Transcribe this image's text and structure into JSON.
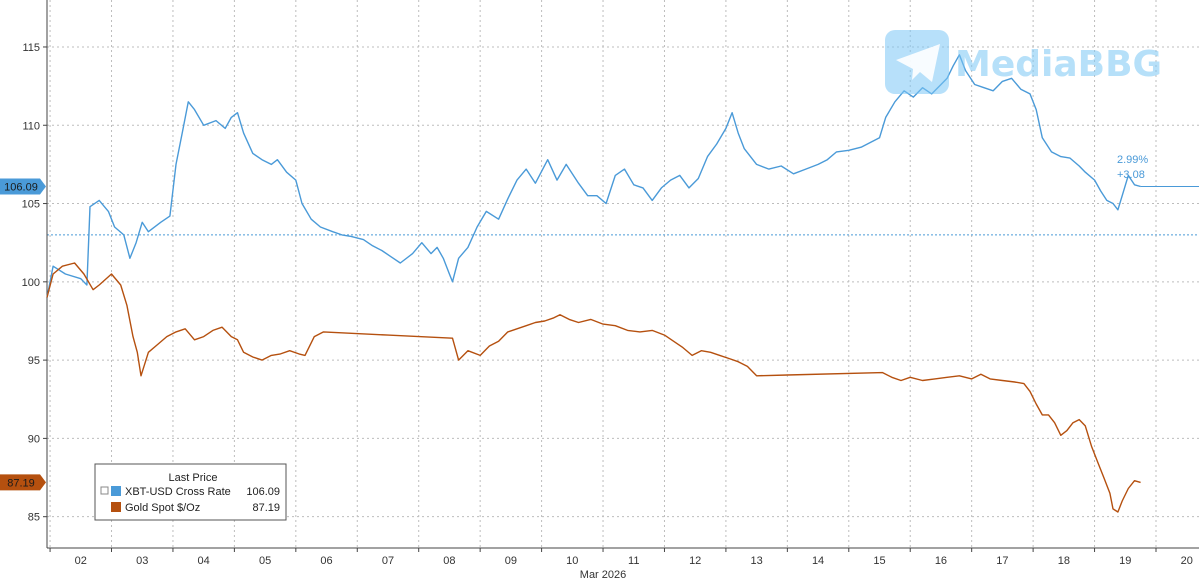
{
  "chart_data": {
    "type": "line",
    "xlabel": "Mar 2026",
    "x_ticks": [
      "02",
      "03",
      "04",
      "05",
      "06",
      "07",
      "08",
      "09",
      "10",
      "11",
      "12",
      "13",
      "14",
      "15",
      "16",
      "17",
      "18",
      "19",
      "20"
    ],
    "y_ticks": [
      "115",
      "110",
      "105",
      "100",
      "95",
      "90",
      "85"
    ],
    "ylim": [
      83,
      118
    ],
    "xlim": [
      1.95,
      20.7
    ],
    "grid": true,
    "reference_line": 103.0,
    "annotations": [
      "2.99%",
      "+3.08"
    ],
    "last_value_badges": [
      "106.09",
      "87.19"
    ],
    "legend": {
      "title": "Last Price",
      "placement": "bottom-left",
      "entries": [
        {
          "label": "XBT-USD Cross Rate",
          "value": "106.09",
          "color": "#4a9ad8"
        },
        {
          "label": "Gold Spot $/Oz",
          "value": "87.19",
          "color": "#b5500f"
        }
      ]
    },
    "series": [
      {
        "name": "XBT-USD Cross Rate",
        "color": "#4a9ad8",
        "points": [
          [
            1.95,
            99.0
          ],
          [
            2.05,
            101.0
          ],
          [
            2.25,
            100.5
          ],
          [
            2.5,
            100.2
          ],
          [
            2.6,
            99.8
          ],
          [
            2.65,
            104.8
          ],
          [
            2.8,
            105.2
          ],
          [
            2.95,
            104.5
          ],
          [
            3.05,
            103.5
          ],
          [
            3.2,
            103.0
          ],
          [
            3.3,
            101.5
          ],
          [
            3.4,
            102.5
          ],
          [
            3.5,
            103.8
          ],
          [
            3.6,
            103.2
          ],
          [
            3.8,
            103.8
          ],
          [
            3.95,
            104.2
          ],
          [
            4.05,
            107.5
          ],
          [
            4.15,
            109.5
          ],
          [
            4.25,
            111.5
          ],
          [
            4.35,
            111.0
          ],
          [
            4.5,
            110.0
          ],
          [
            4.7,
            110.3
          ],
          [
            4.85,
            109.8
          ],
          [
            4.95,
            110.5
          ],
          [
            5.05,
            110.8
          ],
          [
            5.15,
            109.5
          ],
          [
            5.3,
            108.2
          ],
          [
            5.45,
            107.8
          ],
          [
            5.6,
            107.5
          ],
          [
            5.7,
            107.8
          ],
          [
            5.85,
            107.0
          ],
          [
            6.0,
            106.5
          ],
          [
            6.1,
            105.0
          ],
          [
            6.25,
            104.0
          ],
          [
            6.4,
            103.5
          ],
          [
            6.6,
            103.2
          ],
          [
            6.75,
            103.0
          ],
          [
            6.9,
            102.9
          ],
          [
            7.1,
            102.7
          ],
          [
            7.25,
            102.3
          ],
          [
            7.4,
            102.0
          ],
          [
            7.55,
            101.6
          ],
          [
            7.7,
            101.2
          ],
          [
            7.9,
            101.8
          ],
          [
            8.05,
            102.5
          ],
          [
            8.2,
            101.8
          ],
          [
            8.3,
            102.2
          ],
          [
            8.4,
            101.5
          ],
          [
            8.5,
            100.5
          ],
          [
            8.55,
            100.0
          ],
          [
            8.65,
            101.5
          ],
          [
            8.8,
            102.2
          ],
          [
            8.95,
            103.5
          ],
          [
            9.1,
            104.5
          ],
          [
            9.3,
            104.0
          ],
          [
            9.45,
            105.3
          ],
          [
            9.6,
            106.5
          ],
          [
            9.75,
            107.2
          ],
          [
            9.9,
            106.3
          ],
          [
            10.1,
            107.8
          ],
          [
            10.25,
            106.5
          ],
          [
            10.4,
            107.5
          ],
          [
            10.6,
            106.3
          ],
          [
            10.75,
            105.5
          ],
          [
            10.9,
            105.5
          ],
          [
            11.05,
            105.0
          ],
          [
            11.2,
            106.8
          ],
          [
            11.35,
            107.2
          ],
          [
            11.5,
            106.2
          ],
          [
            11.65,
            106.0
          ],
          [
            11.8,
            105.2
          ],
          [
            11.95,
            106.0
          ],
          [
            12.1,
            106.5
          ],
          [
            12.25,
            106.8
          ],
          [
            12.4,
            106.0
          ],
          [
            12.55,
            106.6
          ],
          [
            12.7,
            108.0
          ],
          [
            12.85,
            108.8
          ],
          [
            13.0,
            109.8
          ],
          [
            13.1,
            110.8
          ],
          [
            13.2,
            109.5
          ],
          [
            13.3,
            108.5
          ],
          [
            13.5,
            107.5
          ],
          [
            13.7,
            107.2
          ],
          [
            13.9,
            107.4
          ],
          [
            14.1,
            106.9
          ],
          [
            14.3,
            107.2
          ],
          [
            14.5,
            107.5
          ],
          [
            14.65,
            107.8
          ],
          [
            14.8,
            108.3
          ],
          [
            15.0,
            108.4
          ],
          [
            15.2,
            108.6
          ],
          [
            15.35,
            108.9
          ],
          [
            15.5,
            109.2
          ],
          [
            15.6,
            110.5
          ],
          [
            15.75,
            111.5
          ],
          [
            15.9,
            112.2
          ],
          [
            16.05,
            111.8
          ],
          [
            16.2,
            112.4
          ],
          [
            16.35,
            112.0
          ],
          [
            16.5,
            112.6
          ],
          [
            16.6,
            113.0
          ],
          [
            16.7,
            113.8
          ],
          [
            16.8,
            114.5
          ],
          [
            16.9,
            113.5
          ],
          [
            17.05,
            112.6
          ],
          [
            17.2,
            112.4
          ],
          [
            17.35,
            112.2
          ],
          [
            17.5,
            112.8
          ],
          [
            17.65,
            113.0
          ],
          [
            17.8,
            112.3
          ],
          [
            17.95,
            112.0
          ],
          [
            18.05,
            111.0
          ],
          [
            18.15,
            109.2
          ],
          [
            18.3,
            108.3
          ],
          [
            18.45,
            108.0
          ],
          [
            18.6,
            107.9
          ],
          [
            18.75,
            107.4
          ],
          [
            18.85,
            107.0
          ],
          [
            19.0,
            106.5
          ],
          [
            19.1,
            105.8
          ],
          [
            19.2,
            105.2
          ],
          [
            19.3,
            105.0
          ],
          [
            19.38,
            104.6
          ],
          [
            19.45,
            105.5
          ],
          [
            19.55,
            106.8
          ],
          [
            19.65,
            106.2
          ],
          [
            19.75,
            106.09
          ]
        ]
      },
      {
        "name": "Gold Spot $/Oz",
        "color": "#b5500f",
        "points": [
          [
            1.95,
            99.0
          ],
          [
            2.05,
            100.5
          ],
          [
            2.2,
            101.0
          ],
          [
            2.4,
            101.2
          ],
          [
            2.55,
            100.5
          ],
          [
            2.7,
            99.5
          ],
          [
            2.8,
            99.8
          ],
          [
            3.0,
            100.5
          ],
          [
            3.15,
            99.8
          ],
          [
            3.25,
            98.5
          ],
          [
            3.35,
            96.5
          ],
          [
            3.42,
            95.5
          ],
          [
            3.48,
            94.0
          ],
          [
            3.6,
            95.5
          ],
          [
            3.75,
            96.0
          ],
          [
            3.9,
            96.5
          ],
          [
            4.05,
            96.8
          ],
          [
            4.2,
            97.0
          ],
          [
            4.35,
            96.3
          ],
          [
            4.5,
            96.5
          ],
          [
            4.65,
            96.9
          ],
          [
            4.8,
            97.1
          ],
          [
            4.95,
            96.5
          ],
          [
            5.05,
            96.3
          ],
          [
            5.15,
            95.5
          ],
          [
            5.3,
            95.2
          ],
          [
            5.45,
            95.0
          ],
          [
            5.6,
            95.3
          ],
          [
            5.75,
            95.4
          ],
          [
            5.9,
            95.6
          ],
          [
            6.05,
            95.4
          ],
          [
            6.15,
            95.3
          ],
          [
            6.3,
            96.5
          ],
          [
            6.45,
            96.8
          ],
          [
            7.5,
            96.6
          ],
          [
            8.55,
            96.4
          ],
          [
            8.65,
            95.0
          ],
          [
            8.8,
            95.6
          ],
          [
            9.0,
            95.3
          ],
          [
            9.15,
            95.9
          ],
          [
            9.3,
            96.2
          ],
          [
            9.45,
            96.8
          ],
          [
            9.6,
            97.0
          ],
          [
            9.75,
            97.2
          ],
          [
            9.9,
            97.4
          ],
          [
            10.05,
            97.5
          ],
          [
            10.2,
            97.7
          ],
          [
            10.3,
            97.9
          ],
          [
            10.45,
            97.6
          ],
          [
            10.6,
            97.4
          ],
          [
            10.8,
            97.6
          ],
          [
            11.0,
            97.3
          ],
          [
            11.2,
            97.2
          ],
          [
            11.4,
            96.9
          ],
          [
            11.6,
            96.8
          ],
          [
            11.8,
            96.9
          ],
          [
            12.0,
            96.6
          ],
          [
            12.15,
            96.2
          ],
          [
            12.3,
            95.8
          ],
          [
            12.45,
            95.3
          ],
          [
            12.6,
            95.6
          ],
          [
            12.75,
            95.5
          ],
          [
            12.9,
            95.3
          ],
          [
            13.05,
            95.1
          ],
          [
            13.2,
            94.9
          ],
          [
            13.35,
            94.6
          ],
          [
            13.5,
            94.0
          ],
          [
            14.0,
            94.05
          ],
          [
            15.55,
            94.2
          ],
          [
            15.7,
            93.9
          ],
          [
            15.85,
            93.7
          ],
          [
            16.0,
            93.9
          ],
          [
            16.2,
            93.7
          ],
          [
            16.4,
            93.8
          ],
          [
            16.6,
            93.9
          ],
          [
            16.8,
            94.0
          ],
          [
            17.0,
            93.8
          ],
          [
            17.15,
            94.1
          ],
          [
            17.3,
            93.8
          ],
          [
            17.5,
            93.7
          ],
          [
            17.7,
            93.6
          ],
          [
            17.85,
            93.5
          ],
          [
            17.95,
            93.0
          ],
          [
            18.05,
            92.2
          ],
          [
            18.15,
            91.5
          ],
          [
            18.25,
            91.5
          ],
          [
            18.35,
            91.0
          ],
          [
            18.45,
            90.2
          ],
          [
            18.55,
            90.5
          ],
          [
            18.65,
            91.0
          ],
          [
            18.75,
            91.2
          ],
          [
            18.85,
            90.8
          ],
          [
            18.95,
            89.5
          ],
          [
            19.05,
            88.5
          ],
          [
            19.15,
            87.5
          ],
          [
            19.25,
            86.5
          ],
          [
            19.3,
            85.5
          ],
          [
            19.38,
            85.3
          ],
          [
            19.45,
            86.0
          ],
          [
            19.55,
            86.8
          ],
          [
            19.65,
            87.3
          ],
          [
            19.75,
            87.19
          ]
        ]
      }
    ]
  },
  "watermark": {
    "text": "MediaBBG",
    "icon": "telegram-plane-icon",
    "color": "#7cc7f5"
  }
}
